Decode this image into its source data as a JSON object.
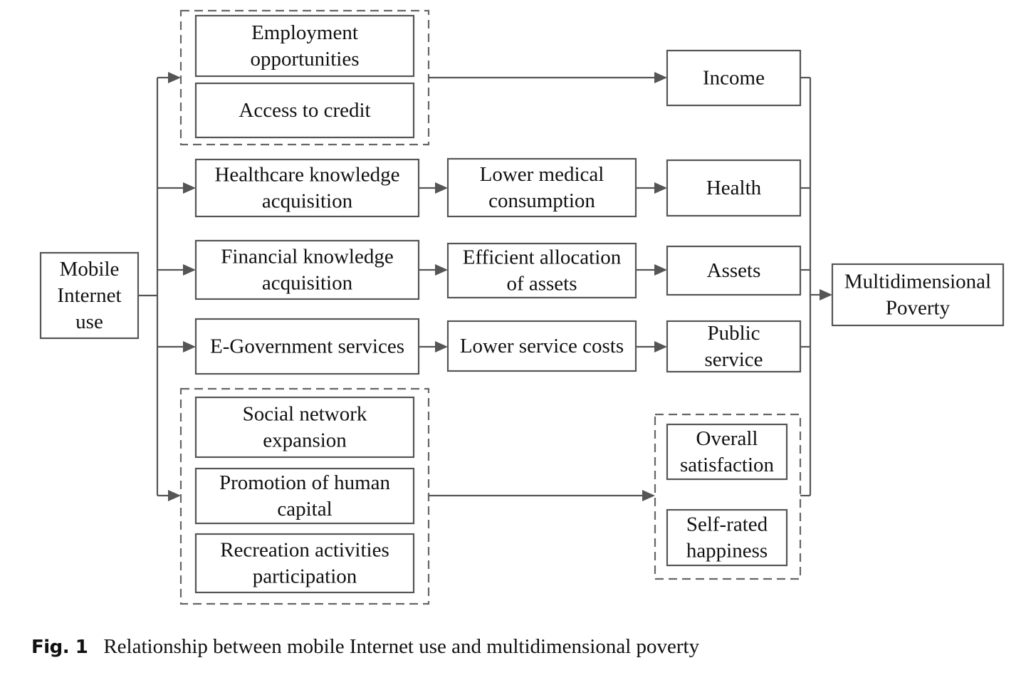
{
  "nodes": {
    "mobile_internet_use": [
      "Mobile",
      "Internet",
      "use"
    ],
    "employment_opportunities": [
      "Employment",
      "opportunities"
    ],
    "access_to_credit": [
      "Access to credit"
    ],
    "healthcare_knowledge": [
      "Healthcare knowledge",
      "acquisition"
    ],
    "financial_knowledge": [
      "Financial knowledge",
      "acquisition"
    ],
    "egovernment_services": [
      "E-Government services"
    ],
    "social_network": [
      "Social network",
      "expansion"
    ],
    "human_capital": [
      "Promotion of human",
      "capital"
    ],
    "recreation": [
      "Recreation activities",
      "participation"
    ],
    "lower_medical": [
      "Lower medical",
      "consumption"
    ],
    "efficient_allocation": [
      "Efficient allocation",
      "of assets"
    ],
    "lower_service_costs": [
      "Lower service costs"
    ],
    "income": [
      "Income"
    ],
    "health": [
      "Health"
    ],
    "assets": [
      "Assets"
    ],
    "public_service": [
      "Public",
      "service"
    ],
    "overall_satisfaction": [
      "Overall",
      "satisfaction"
    ],
    "self_rated_happiness": [
      "Self-rated",
      "happiness"
    ],
    "multidimensional_poverty": [
      "Multidimensional",
      "Poverty"
    ]
  },
  "caption": {
    "label": "Fig. 1",
    "text": "Relationship between mobile Internet use and multidimensional poverty"
  },
  "colors": {
    "stroke": "#555555",
    "text": "#111111"
  }
}
